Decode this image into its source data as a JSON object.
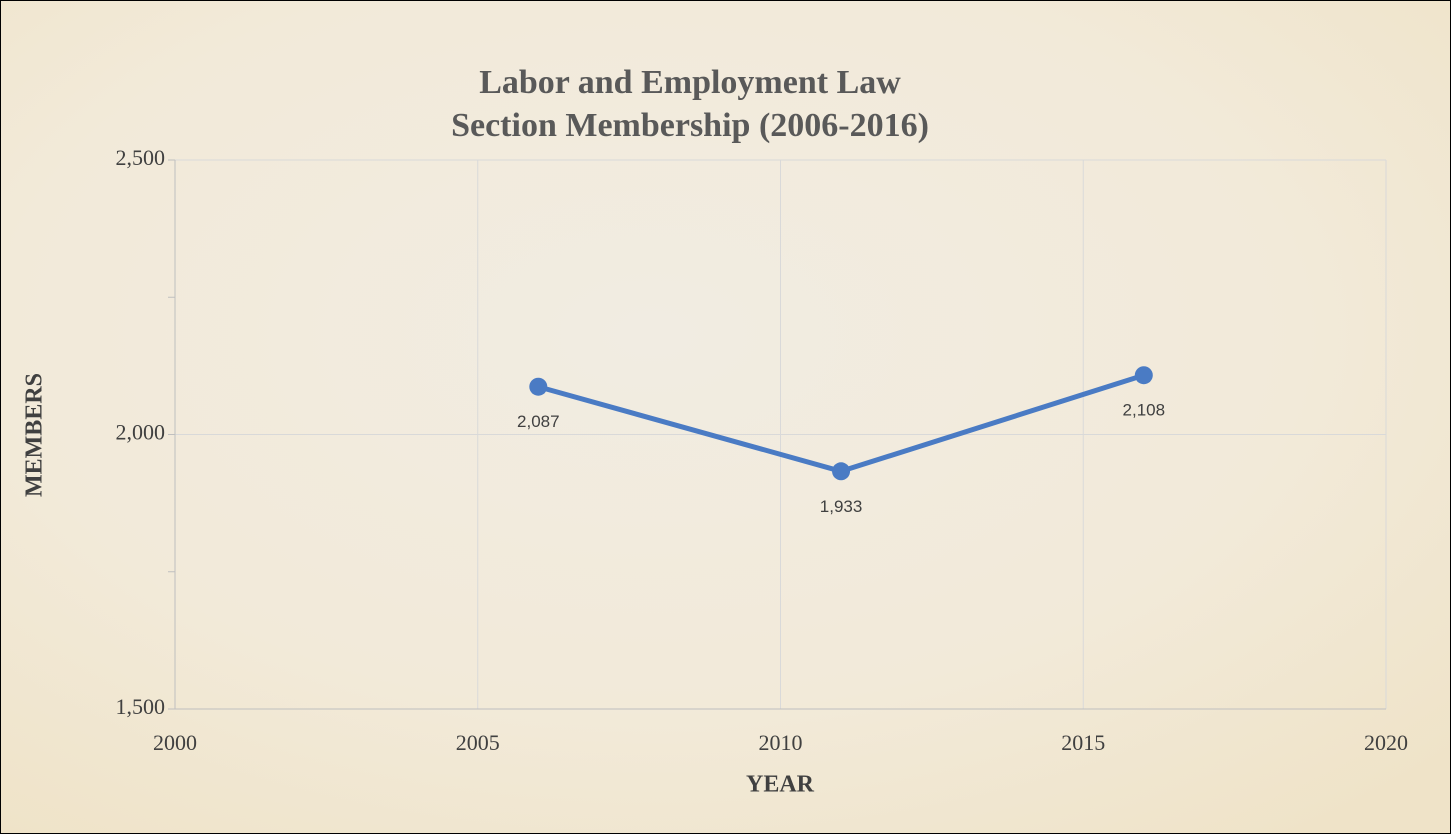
{
  "chart_data": {
    "type": "line",
    "title": [
      "Labor and Employment Law",
      "Section Membership (2006-2016)"
    ],
    "x_label": "YEAR",
    "y_label": "MEMBERS",
    "x": [
      2006,
      2011,
      2016
    ],
    "series": [
      {
        "name": "Members",
        "color": "#4a7bc4",
        "values": [
          2087,
          1933,
          2108
        ],
        "value_labels": [
          "2,087",
          "1,933",
          "2,108"
        ]
      }
    ],
    "xlim": [
      2000,
      2020
    ],
    "xticks": [
      2000,
      2005,
      2010,
      2015,
      2020
    ],
    "ylim": [
      1500,
      2500
    ],
    "yticks": [
      {
        "value": 1500,
        "label": "1,500"
      },
      {
        "value": 2000,
        "label": "2,000"
      },
      {
        "value": 2500,
        "label": "2,500"
      }
    ],
    "yminorticks": [
      1750,
      2250
    ],
    "grid": true
  }
}
